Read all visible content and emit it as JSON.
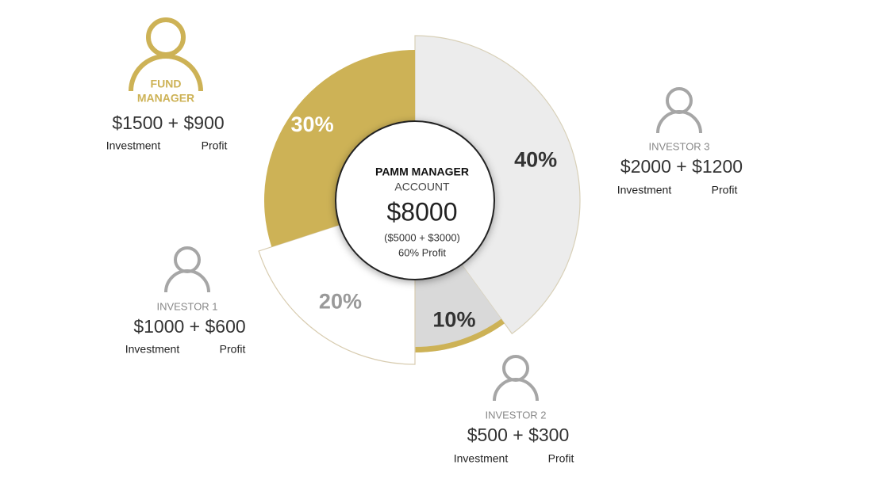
{
  "center": {
    "title": "PAMM MANAGER",
    "subtitle": "ACCOUNT",
    "amount": "$8000",
    "breakdown": "($5000 + $3000)",
    "profit_note": "60% Profit"
  },
  "segments": [
    {
      "value": 40,
      "label": "40%",
      "color": "#ececec",
      "text_color": "#333333"
    },
    {
      "value": 10,
      "label": "10%",
      "color": "#d9d9d9",
      "text_color": "#333333"
    },
    {
      "value": 20,
      "label": "20%",
      "color": "#ffffff",
      "text_color": "#999999"
    },
    {
      "value": 30,
      "label": "30%",
      "color": "#cdb256",
      "text_color": "#ffffff"
    }
  ],
  "people": [
    {
      "title_lines": [
        "FUND",
        "MANAGER"
      ],
      "amount": "$1500 + $900",
      "investment_label": "Investment",
      "profit_label": "Profit"
    },
    {
      "title_lines": [
        "INVESTOR 3"
      ],
      "amount": "$2000 + $1200",
      "investment_label": "Investment",
      "profit_label": "Profit"
    },
    {
      "title_lines": [
        "INVESTOR 1"
      ],
      "amount": "$1000 + $600",
      "investment_label": "Investment",
      "profit_label": "Profit"
    },
    {
      "title_lines": [
        "INVESTOR 2"
      ],
      "amount": "$500 + $300",
      "investment_label": "Investment",
      "profit_label": "Profit"
    }
  ]
}
